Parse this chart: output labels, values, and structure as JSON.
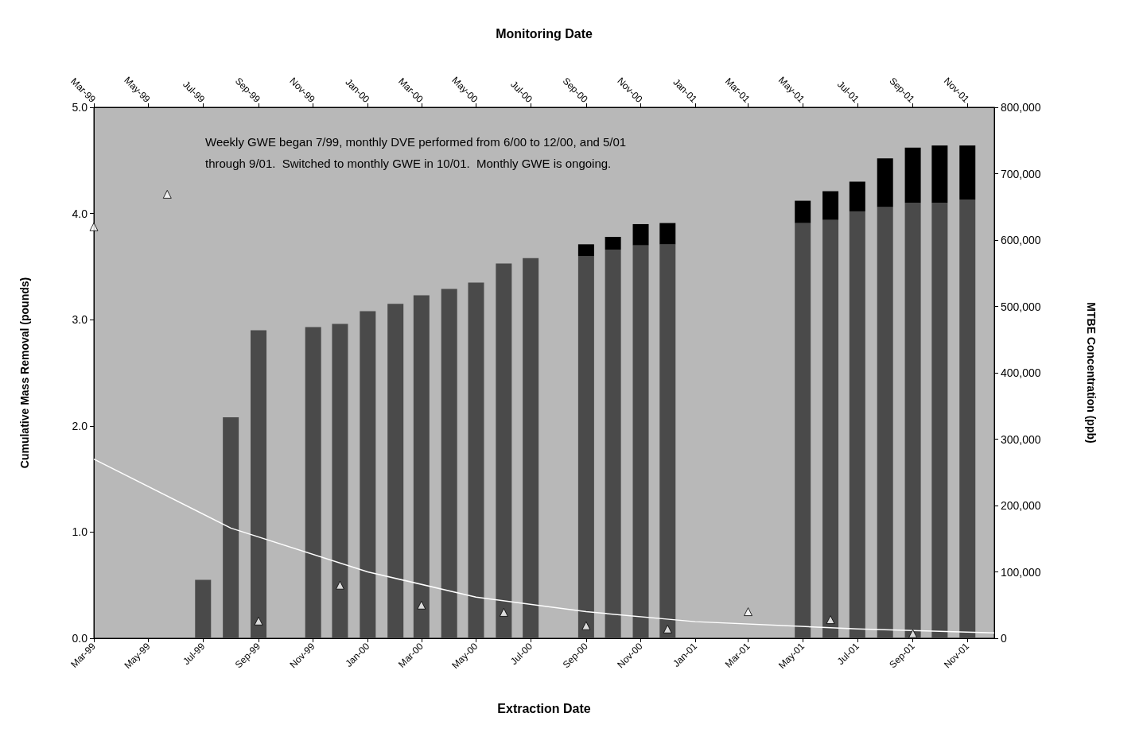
{
  "chart_data": {
    "type": "bar",
    "stacked": true,
    "xlabel": "Extraction Date",
    "x2label": "Monitoring Date",
    "ylabel": "Cumulative Mass Removal (pounds)",
    "y2label": "MTBE Concentration (ppb)",
    "annotations": [
      "Weekly GWE began 7/99, monthly DVE performed from 6/00 to 12/00, and 5/01 through 9/01.  Switched to monthly GWE in 10/01.  Monthly GWE is ongoing."
    ],
    "xlim": [
      "1999-03",
      "2001-12"
    ],
    "x2lim": [
      "1999-03",
      "2001-12"
    ],
    "xticks": [
      {
        "value": "1999-03",
        "label": "Mar-99"
      },
      {
        "value": "1999-05",
        "label": "May-99"
      },
      {
        "value": "1999-07",
        "label": "Jul-99"
      },
      {
        "value": "1999-09",
        "label": "Sep-99"
      },
      {
        "value": "1999-11",
        "label": "Nov-99"
      },
      {
        "value": "2000-01",
        "label": "Jan-00"
      },
      {
        "value": "2000-03",
        "label": "Mar-00"
      },
      {
        "value": "2000-05",
        "label": "May-00"
      },
      {
        "value": "2000-07",
        "label": "Jul-00"
      },
      {
        "value": "2000-09",
        "label": "Sep-00"
      },
      {
        "value": "2000-11",
        "label": "Nov-00"
      },
      {
        "value": "2001-01",
        "label": "Jan-01"
      },
      {
        "value": "2001-03",
        "label": "Mar-01"
      },
      {
        "value": "2001-05",
        "label": "May-01"
      },
      {
        "value": "2001-07",
        "label": "Jul-01"
      },
      {
        "value": "2001-09",
        "label": "Sep-01"
      },
      {
        "value": "2001-11",
        "label": "Nov-01"
      }
    ],
    "x2ticks": [
      {
        "value": "1999-03",
        "label": "Mar-99"
      },
      {
        "value": "1999-05",
        "label": "May-99"
      },
      {
        "value": "1999-07",
        "label": "Jul-99"
      },
      {
        "value": "1999-09",
        "label": "Sep-99"
      },
      {
        "value": "1999-11",
        "label": "Nov-99"
      },
      {
        "value": "2000-01",
        "label": "Jan-00"
      },
      {
        "value": "2000-03",
        "label": "Mar-00"
      },
      {
        "value": "2000-05",
        "label": "May-00"
      },
      {
        "value": "2000-07",
        "label": "Jul-00"
      },
      {
        "value": "2000-09",
        "label": "Sep-00"
      },
      {
        "value": "2000-11",
        "label": "Nov-00"
      },
      {
        "value": "2001-01",
        "label": "Jan-01"
      },
      {
        "value": "2001-03",
        "label": "Mar-01"
      },
      {
        "value": "2001-05",
        "label": "May-01"
      },
      {
        "value": "2001-07",
        "label": "Jul-01"
      },
      {
        "value": "2001-09",
        "label": "Sep-01"
      },
      {
        "value": "2001-11",
        "label": "Nov-01"
      }
    ],
    "ylim": [
      0,
      5
    ],
    "yticks": [
      {
        "value": 0,
        "label": "0.0"
      },
      {
        "value": 1,
        "label": "1.0"
      },
      {
        "value": 2,
        "label": "2.0"
      },
      {
        "value": 3,
        "label": "3.0"
      },
      {
        "value": 4,
        "label": "4.0"
      },
      {
        "value": 5,
        "label": "5.0"
      }
    ],
    "y2lim": [
      0,
      800000
    ],
    "y2ticks": [
      0,
      {
        "value": 100000,
        "label": "100,000"
      },
      {
        "value": 200000,
        "label": "200,000"
      },
      {
        "value": 300000,
        "label": "300,000"
      },
      {
        "value": 400000,
        "label": "400,000"
      },
      {
        "value": 500000,
        "label": "500,000"
      },
      {
        "value": 600000,
        "label": "600,000"
      },
      {
        "value": 700000,
        "label": "700,000"
      },
      {
        "value": 800000,
        "label": "800,000"
      }
    ],
    "series": [
      {
        "color": "#4a4a4a",
        "x": [
          "1999-07",
          "1999-08",
          "1999-09",
          "1999-11",
          "1999-12",
          "2000-01",
          "2000-02",
          "2000-03",
          "2000-04",
          "2000-05",
          "2000-06",
          "2000-07",
          "2000-09",
          "2000-10",
          "2000-11",
          "2000-12",
          "2001-05",
          "2001-06",
          "2001-07",
          "2001-08",
          "2001-09",
          "2001-10",
          "2001-11"
        ],
        "values": [
          0.55,
          2.08,
          2.9,
          2.93,
          2.96,
          3.08,
          3.15,
          3.23,
          3.29,
          3.35,
          3.53,
          3.58,
          3.6,
          3.66,
          3.7,
          3.71,
          3.91,
          3.94,
          4.02,
          4.06,
          4.1,
          4.1,
          4.13
        ]
      },
      {
        "color": "#000000",
        "x": [
          "1999-07",
          "1999-08",
          "1999-09",
          "1999-11",
          "1999-12",
          "2000-01",
          "2000-02",
          "2000-03",
          "2000-04",
          "2000-05",
          "2000-06",
          "2000-07",
          "2000-09",
          "2000-10",
          "2000-11",
          "2000-12",
          "2001-05",
          "2001-06",
          "2001-07",
          "2001-08",
          "2001-09",
          "2001-10",
          "2001-11"
        ],
        "values": [
          0,
          0,
          0,
          0,
          0,
          0,
          0,
          0,
          0,
          0,
          0,
          0,
          0.11,
          0.12,
          0.2,
          0.2,
          0.21,
          0.27,
          0.28,
          0.46,
          0.52,
          0.54,
          0.51
        ]
      },
      {
        "type": "scatter",
        "axis": "y2",
        "marker": "triangle",
        "color": "#ffffff",
        "x": [
          "1999-03",
          "1999-05-22",
          "1999-09",
          "1999-12",
          "2000-03",
          "2000-06",
          "2000-09",
          "2000-12",
          "2001-03",
          "2001-06",
          "2001-09"
        ],
        "values": [
          620000,
          669000,
          26000,
          80000,
          50000,
          39000,
          19000,
          14000,
          40000,
          28000,
          7000
        ]
      },
      {
        "type": "line",
        "axis": "y2",
        "marker": "none",
        "color": "#ffffff",
        "x": [
          "1999-03",
          "1999-08",
          "2000-01",
          "2000-05",
          "2000-09",
          "2001-01",
          "2001-07",
          "2001-12"
        ],
        "values": [
          270000,
          166000,
          100000,
          62000,
          40000,
          25000,
          14000,
          8000
        ]
      }
    ]
  }
}
